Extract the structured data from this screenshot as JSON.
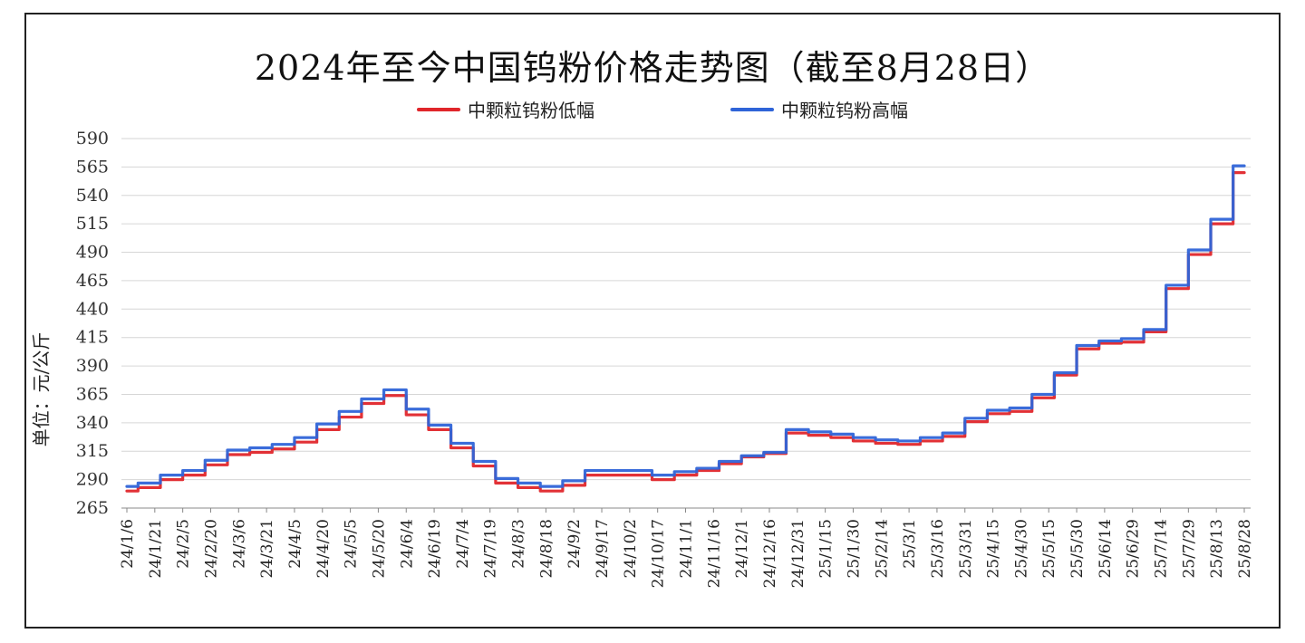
{
  "chart_data": {
    "type": "line",
    "title": "2024年至今中国钨粉价格走势图（截至8月28日）",
    "ylabel": "单位：元/公斤",
    "xlabel": "",
    "ylim": [
      265,
      590
    ],
    "yticks": [
      590,
      565,
      540,
      515,
      490,
      465,
      440,
      415,
      390,
      365,
      340,
      315,
      290,
      265
    ],
    "grid": true,
    "legend_position": "top",
    "x_tick_labels": [
      "24/1/6",
      "24/1/21",
      "24/2/5",
      "24/2/20",
      "24/3/6",
      "24/3/21",
      "24/4/5",
      "24/4/20",
      "24/5/5",
      "24/5/20",
      "24/6/4",
      "24/6/19",
      "24/7/4",
      "24/7/19",
      "24/8/3",
      "24/8/18",
      "24/9/2",
      "24/9/17",
      "24/10/2",
      "24/10/17",
      "24/11/1",
      "24/11/16",
      "24/12/1",
      "24/12/16",
      "24/12/31",
      "25/1/15",
      "25/1/30",
      "25/2/14",
      "25/3/1",
      "25/3/16",
      "25/3/31",
      "25/4/15",
      "25/4/30",
      "25/5/15",
      "25/5/30",
      "25/6/14",
      "25/6/29",
      "25/7/14",
      "25/7/29",
      "25/8/13",
      "25/8/28"
    ],
    "series": [
      {
        "name": "中颗粒钨粉低幅",
        "color": "#e0262b",
        "values": [
          280,
          283,
          290,
          294,
          303,
          312,
          314,
          317,
          323,
          334,
          345,
          357,
          364,
          347,
          334,
          318,
          302,
          287,
          283,
          280,
          285,
          294,
          294,
          294,
          290,
          294,
          298,
          304,
          310,
          313,
          331,
          329,
          327,
          324,
          322,
          321,
          324,
          328,
          341,
          348,
          350,
          362,
          382,
          405,
          410,
          411,
          420,
          458,
          488,
          515,
          560
        ]
      },
      {
        "name": "中颗粒钨粉高幅",
        "color": "#2f64d8",
        "values": [
          284,
          287,
          294,
          298,
          307,
          316,
          318,
          321,
          327,
          339,
          350,
          361,
          369,
          352,
          338,
          322,
          306,
          291,
          287,
          284,
          289,
          298,
          298,
          298,
          294,
          297,
          300,
          306,
          311,
          314,
          334,
          332,
          330,
          327,
          325,
          324,
          327,
          331,
          344,
          351,
          353,
          365,
          384,
          408,
          412,
          414,
          422,
          461,
          492,
          519,
          566
        ]
      }
    ]
  }
}
